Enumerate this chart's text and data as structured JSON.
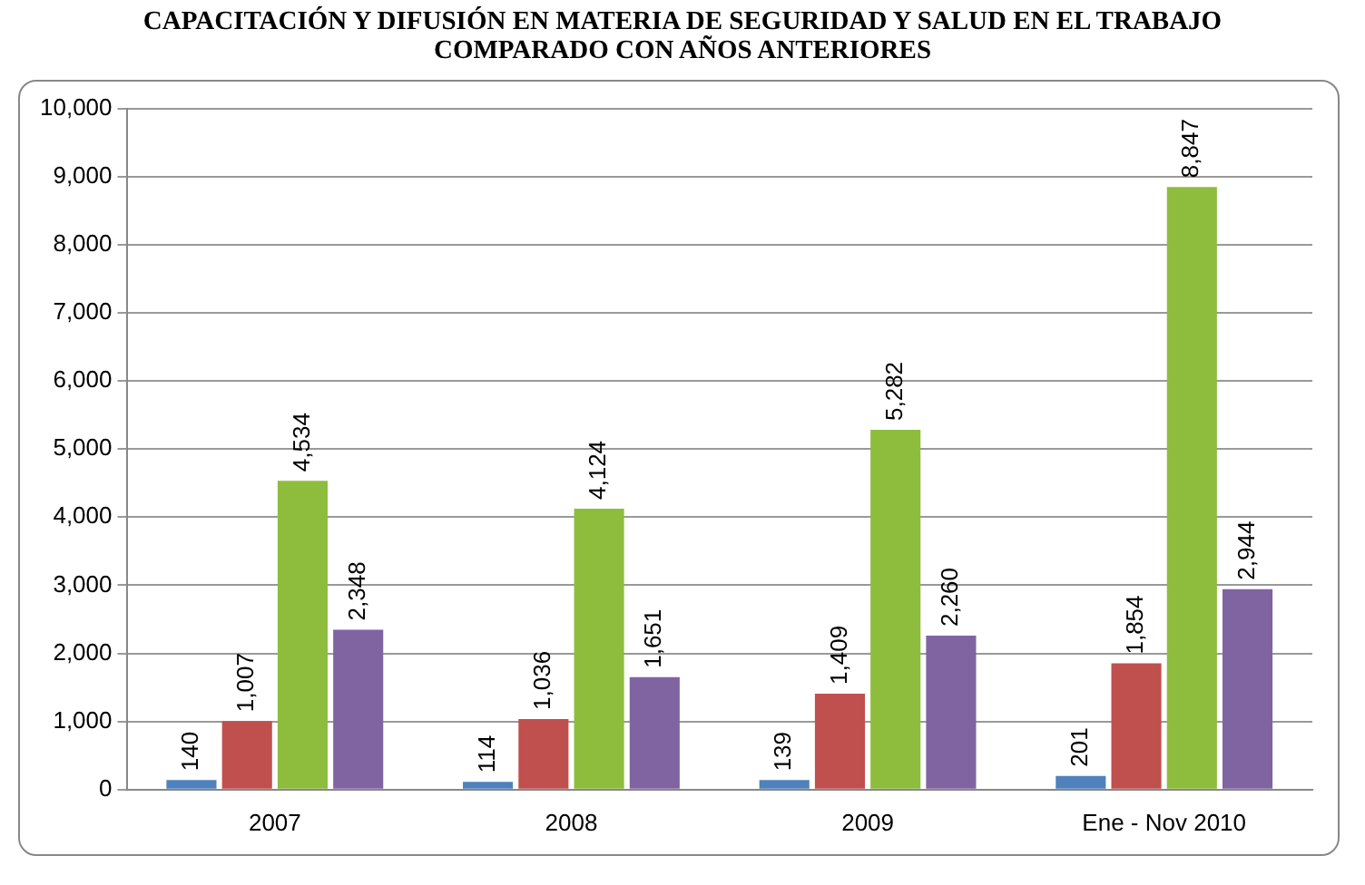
{
  "chart_data": {
    "type": "bar",
    "title": "CAPACITACIÓN Y DIFUSIÓN EN MATERIA DE SEGURIDAD Y SALUD EN EL TRABAJO COMPARADO CON AÑOS ANTERIORES",
    "categories": [
      "2007",
      "2008",
      "2009",
      "Ene - Nov 2010"
    ],
    "series": [
      {
        "color": "#4f81bd",
        "values": [
          140,
          114,
          139,
          201
        ],
        "value_labels": [
          "140",
          "114",
          "139",
          "201"
        ]
      },
      {
        "color": "#c0504d",
        "values": [
          1007,
          1036,
          1409,
          1854
        ],
        "value_labels": [
          "1,007",
          "1,036",
          "1,409",
          "1,854"
        ]
      },
      {
        "color": "#8ebd3d",
        "values": [
          4534,
          4124,
          5282,
          8847
        ],
        "value_labels": [
          "4,534",
          "4,124",
          "5,282",
          "8,847"
        ]
      },
      {
        "color": "#8064a2",
        "values": [
          2348,
          1651,
          2260,
          2944
        ],
        "value_labels": [
          "2,348",
          "1,651",
          "2,260",
          "2,944"
        ]
      }
    ],
    "ylim": [
      0,
      10000
    ],
    "yticks": [
      0,
      {
        "value": 1000,
        "label": "1,000"
      },
      {
        "value": 2000,
        "label": "2,000"
      },
      {
        "value": 3000,
        "label": "3,000"
      },
      {
        "value": 4000,
        "label": "4,000"
      },
      {
        "value": 5000,
        "label": "5,000"
      },
      {
        "value": 6000,
        "label": "6,000"
      },
      {
        "value": 7000,
        "label": "7,000"
      },
      {
        "value": 8000,
        "label": "8,000"
      },
      {
        "value": 9000,
        "label": "9,000"
      },
      {
        "value": 10000,
        "label": "10,000"
      }
    ],
    "grid": "y",
    "legend": false
  }
}
